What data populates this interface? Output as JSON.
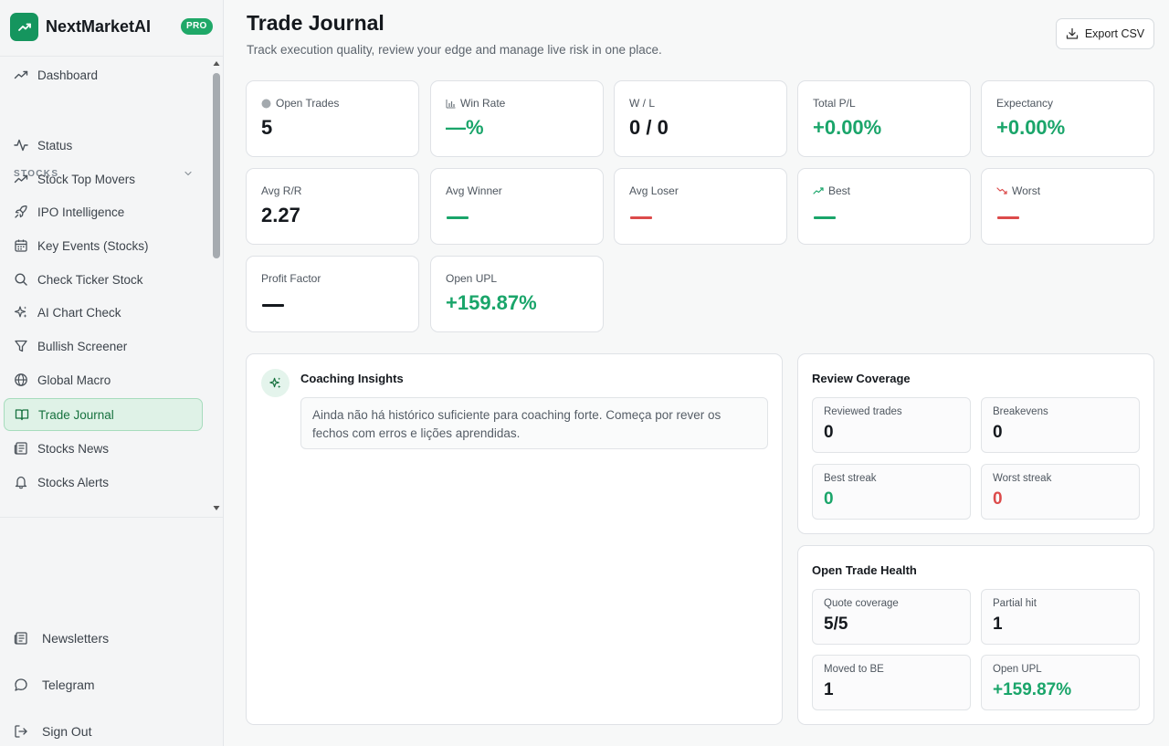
{
  "brand": {
    "name": "NextMarketAI",
    "badge": "PRO"
  },
  "nav": {
    "dashboard": "Dashboard",
    "section": "STOCKS",
    "items": [
      {
        "label": "Status",
        "icon": "activity-icon"
      },
      {
        "label": "Stock Top Movers",
        "icon": "trending-up-icon"
      },
      {
        "label": "IPO Intelligence",
        "icon": "rocket-icon"
      },
      {
        "label": "Key Events (Stocks)",
        "icon": "calendar-icon"
      },
      {
        "label": "Check Ticker Stock",
        "icon": "search-icon"
      },
      {
        "label": "AI Chart Check",
        "icon": "sparkles-icon"
      },
      {
        "label": "Bullish Screener",
        "icon": "filter-icon"
      },
      {
        "label": "Global Macro",
        "icon": "globe-icon"
      },
      {
        "label": "Trade Journal",
        "icon": "book-icon",
        "active": true
      },
      {
        "label": "Stocks News",
        "icon": "newspaper-icon"
      },
      {
        "label": "Stocks Alerts",
        "icon": "bell-icon"
      }
    ],
    "footer": [
      {
        "label": "Newsletters",
        "icon": "newspaper-icon"
      },
      {
        "label": "Telegram",
        "icon": "message-icon"
      },
      {
        "label": "Sign Out",
        "icon": "logout-icon"
      }
    ]
  },
  "header": {
    "title": "Trade Journal",
    "subtitle": "Track execution quality, review your edge and manage live risk in one place.",
    "export_label": "Export CSV"
  },
  "metrics": {
    "open_trades": {
      "label": "Open Trades",
      "value": "5"
    },
    "win_rate": {
      "label": "Win Rate",
      "value": "—%"
    },
    "wl": {
      "label": "W / L",
      "value": "0 / 0"
    },
    "total_pl": {
      "label": "Total P/L",
      "value": "+0.00%"
    },
    "expectancy": {
      "label": "Expectancy",
      "value": "+0.00%"
    },
    "avg_rr": {
      "label": "Avg R/R",
      "value": "2.27"
    },
    "avg_winner": {
      "label": "Avg Winner"
    },
    "avg_loser": {
      "label": "Avg Loser"
    },
    "best": {
      "label": "Best"
    },
    "worst": {
      "label": "Worst"
    },
    "profit_factor": {
      "label": "Profit Factor"
    },
    "open_upl": {
      "label": "Open UPL",
      "value": "+159.87%"
    }
  },
  "coaching": {
    "title": "Coaching Insights",
    "message": "Ainda não há histórico suficiente para coaching forte. Começa por rever os fechos com erros e lições aprendidas."
  },
  "review_coverage": {
    "title": "Review Coverage",
    "reviewed": {
      "label": "Reviewed trades",
      "value": "0"
    },
    "breakevens": {
      "label": "Breakevens",
      "value": "0"
    },
    "best_streak": {
      "label": "Best streak",
      "value": "0"
    },
    "worst_streak": {
      "label": "Worst streak",
      "value": "0"
    }
  },
  "open_trade_health": {
    "title": "Open Trade Health",
    "quote_coverage": {
      "label": "Quote coverage",
      "value": "5/5"
    },
    "partial_hit": {
      "label": "Partial hit",
      "value": "1"
    },
    "moved_to_be": {
      "label": "Moved to BE",
      "value": "1"
    },
    "open_upl": {
      "label": "Open UPL",
      "value": "+159.87%"
    }
  },
  "colors": {
    "accent": "#1aa56a",
    "negative": "#dc4b4b",
    "active_bg": "#dff2e7"
  }
}
